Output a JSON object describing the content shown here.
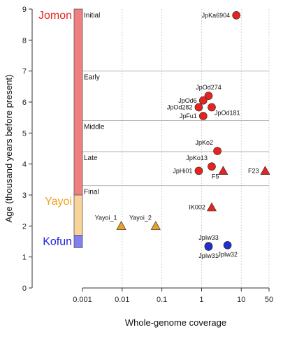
{
  "chart_data": {
    "type": "scatter",
    "title": "",
    "xlabel": "Whole-genome coverage",
    "ylabel": "Age (thousand years before present)",
    "x_scale": "log",
    "xlim": [
      0.001,
      50
    ],
    "ylim": [
      0,
      9
    ],
    "x_ticks": [
      {
        "value": 0.001,
        "label": "0.001"
      },
      {
        "value": 0.01,
        "label": "0.01"
      },
      {
        "value": 0.1,
        "label": "0.1"
      },
      {
        "value": 1,
        "label": "1"
      },
      {
        "value": 10,
        "label": "10"
      },
      {
        "value": 50,
        "label": "50"
      }
    ],
    "y_ticks": [
      {
        "value": 0,
        "label": "0"
      },
      {
        "value": 1,
        "label": "1"
      },
      {
        "value": 2,
        "label": "2"
      },
      {
        "value": 3,
        "label": "3"
      },
      {
        "value": 4,
        "label": "4"
      },
      {
        "value": 5,
        "label": "5"
      },
      {
        "value": 6,
        "label": "6"
      },
      {
        "value": 7,
        "label": "7"
      },
      {
        "value": 8,
        "label": "8"
      },
      {
        "value": 9,
        "label": "9"
      }
    ],
    "grid": {
      "vertical": true,
      "vertical_style": "dashed",
      "horizontal_at_subperiods": true
    },
    "periods": [
      {
        "name": "Jomon",
        "from": 3.0,
        "to": 9.0,
        "bar_color": "#f08080",
        "label_color": "#e8231d"
      },
      {
        "name": "Yayoi",
        "from": 1.7,
        "to": 3.0,
        "bar_color": "#f9d49a",
        "label_color": "#f0a020"
      },
      {
        "name": "Kofun",
        "from": 1.3,
        "to": 1.7,
        "bar_color": "#8080f0",
        "label_color": "#2222dd"
      }
    ],
    "subperiods": [
      {
        "name": "Initial",
        "y": 9.0
      },
      {
        "name": "Early",
        "y": 7.0
      },
      {
        "name": "Middle",
        "y": 5.4
      },
      {
        "name": "Late",
        "y": 4.4
      },
      {
        "name": "Final",
        "y": 3.3
      }
    ],
    "points": [
      {
        "label": "JpKa6904",
        "x": 7.5,
        "y": 8.8,
        "shape": "circle",
        "color": "#e8231d",
        "label_pos": "left"
      },
      {
        "label": "JpOd274",
        "x": 1.5,
        "y": 6.2,
        "shape": "circle",
        "color": "#e8231d",
        "label_pos": "above"
      },
      {
        "label": "JpOd6",
        "x": 1.1,
        "y": 6.05,
        "shape": "circle",
        "color": "#e8231d",
        "label_pos": "left"
      },
      {
        "label": "JpOd282",
        "x": 0.85,
        "y": 5.83,
        "shape": "circle",
        "color": "#e8231d",
        "label_pos": "left"
      },
      {
        "label": "JpOd181",
        "x": 1.8,
        "y": 5.83,
        "shape": "circle",
        "color": "#e8231d",
        "label_pos": "below-right"
      },
      {
        "label": "JpFu1",
        "x": 1.1,
        "y": 5.55,
        "shape": "circle",
        "color": "#e8231d",
        "label_pos": "left"
      },
      {
        "label": "JpKo2",
        "x": 2.5,
        "y": 4.42,
        "shape": "circle",
        "color": "#e8231d",
        "label_pos": "above-left"
      },
      {
        "label": "JpKo13",
        "x": 1.8,
        "y": 3.92,
        "shape": "circle",
        "color": "#e8231d",
        "label_pos": "above-left"
      },
      {
        "label": "JpHi01",
        "x": 0.85,
        "y": 3.78,
        "shape": "circle",
        "color": "#e8231d",
        "label_pos": "left"
      },
      {
        "label": "F5",
        "x": 3.5,
        "y": 3.78,
        "shape": "triangle",
        "color": "#e8231d",
        "label_pos": "below-left"
      },
      {
        "label": "F23",
        "x": 40,
        "y": 3.78,
        "shape": "triangle",
        "color": "#e8231d",
        "label_pos": "left"
      },
      {
        "label": "IK002",
        "x": 1.8,
        "y": 2.6,
        "shape": "triangle",
        "color": "#e8231d",
        "label_pos": "left"
      },
      {
        "label": "Yayoi_1",
        "x": 0.0095,
        "y": 2.0,
        "shape": "triangle",
        "color": "#f0a020",
        "label_pos": "above-left"
      },
      {
        "label": "Yayoi_2",
        "x": 0.07,
        "y": 2.0,
        "shape": "triangle",
        "color": "#f0a020",
        "label_pos": "above-left"
      },
      {
        "label": "JpIw33",
        "x": 1.5,
        "y": 1.35,
        "shape": "circle",
        "color": "#1f2fd6",
        "label_pos": "above"
      },
      {
        "label": "JpIw31",
        "x": 1.5,
        "y": 1.33,
        "shape": "circle",
        "color": "#1f2fd6",
        "label_pos": "below"
      },
      {
        "label": "JpIw32",
        "x": 4.5,
        "y": 1.38,
        "shape": "circle",
        "color": "#1f2fd6",
        "label_pos": "below"
      }
    ]
  }
}
